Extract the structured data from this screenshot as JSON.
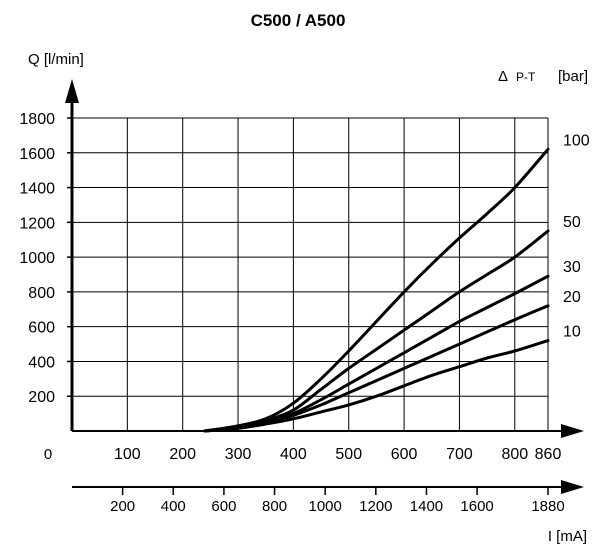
{
  "chart_data": {
    "type": "line",
    "title": "C500 / A500",
    "ylabel": "Q [l/min]",
    "xlabel": "I [mA]",
    "series_axis_label": {
      "delta": "Δ",
      "sub": "P-T",
      "unit": "[bar]"
    },
    "origin_label": "0",
    "ylim": [
      0,
      1800
    ],
    "xlim": [
      0,
      860
    ],
    "yticks": [
      200,
      400,
      600,
      800,
      1000,
      1200,
      1400,
      1600,
      1800
    ],
    "xticks": [
      100,
      200,
      300,
      400,
      500,
      600,
      700,
      800,
      860
    ],
    "x2_ticks": [
      {
        "label": "200",
        "value": 200
      },
      {
        "label": "400",
        "value": 400
      },
      {
        "label": "600",
        "value": 600
      },
      {
        "label": "800",
        "value": 800
      },
      {
        "label": "1000",
        "value": 1000
      },
      {
        "label": "1200",
        "value": 1200
      },
      {
        "label": "1400",
        "value": 1400
      },
      {
        "label": "1600",
        "value": 1600
      },
      {
        "label": "1880",
        "value": 1880
      }
    ],
    "x2_range": [
      0,
      1880
    ],
    "grid": true,
    "series": [
      {
        "name": "100",
        "label": "100",
        "x": [
          240,
          300,
          350,
          400,
          450,
          500,
          550,
          600,
          650,
          700,
          750,
          800,
          860
        ],
        "y": [
          0,
          30,
          70,
          160,
          300,
          460,
          630,
          800,
          960,
          1110,
          1250,
          1400,
          1620
        ]
      },
      {
        "name": "50",
        "label": "50",
        "x": [
          240,
          300,
          350,
          400,
          450,
          500,
          550,
          600,
          650,
          700,
          750,
          800,
          860
        ],
        "y": [
          0,
          25,
          60,
          120,
          240,
          360,
          470,
          580,
          690,
          800,
          900,
          1000,
          1150
        ]
      },
      {
        "name": "30",
        "label": "30",
        "x": [
          240,
          300,
          350,
          400,
          450,
          500,
          550,
          600,
          650,
          700,
          750,
          800,
          860
        ],
        "y": [
          0,
          20,
          50,
          100,
          180,
          270,
          360,
          450,
          540,
          630,
          710,
          790,
          890
        ]
      },
      {
        "name": "20",
        "label": "20",
        "x": [
          240,
          300,
          350,
          400,
          450,
          500,
          550,
          600,
          650,
          700,
          750,
          800,
          860
        ],
        "y": [
          0,
          20,
          45,
          90,
          150,
          220,
          290,
          360,
          430,
          500,
          570,
          640,
          720
        ]
      },
      {
        "name": "10",
        "label": "10",
        "x": [
          240,
          300,
          350,
          400,
          450,
          500,
          550,
          600,
          650,
          700,
          750,
          800,
          860
        ],
        "y": [
          0,
          15,
          40,
          70,
          110,
          150,
          200,
          260,
          320,
          370,
          420,
          460,
          520
        ]
      }
    ]
  }
}
